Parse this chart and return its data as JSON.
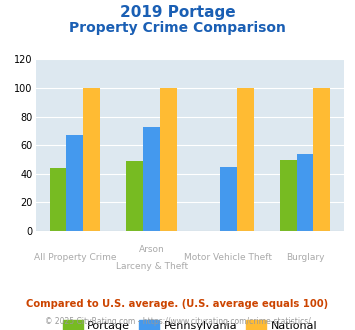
{
  "title_line1": "2019 Portage",
  "title_line2": "Property Crime Comparison",
  "cat_labels_top": [
    "All Property Crime",
    "Arson",
    "Motor Vehicle Theft",
    "Burglary"
  ],
  "cat_labels_bot": [
    "",
    "Larceny & Theft",
    "",
    ""
  ],
  "portage": [
    44,
    49,
    0,
    50
  ],
  "pennsylvania": [
    67,
    73,
    45,
    54
  ],
  "national": [
    100,
    100,
    100,
    100
  ],
  "portage_color": "#77bb22",
  "pennsylvania_color": "#4499ee",
  "national_color": "#ffbb33",
  "bg_color": "#dde8f0",
  "ylim": [
    0,
    120
  ],
  "yticks": [
    0,
    20,
    40,
    60,
    80,
    100,
    120
  ],
  "legend_labels": [
    "Portage",
    "Pennsylvania",
    "National"
  ],
  "footnote1": "Compared to U.S. average. (U.S. average equals 100)",
  "footnote2": "© 2025 CityRating.com - https://www.cityrating.com/crime-statistics/",
  "title_color": "#1a5fb4",
  "xlabel_color": "#aaaaaa",
  "footnote1_color": "#cc4400",
  "footnote2_color": "#999999",
  "footnote2_url_color": "#4499ee"
}
